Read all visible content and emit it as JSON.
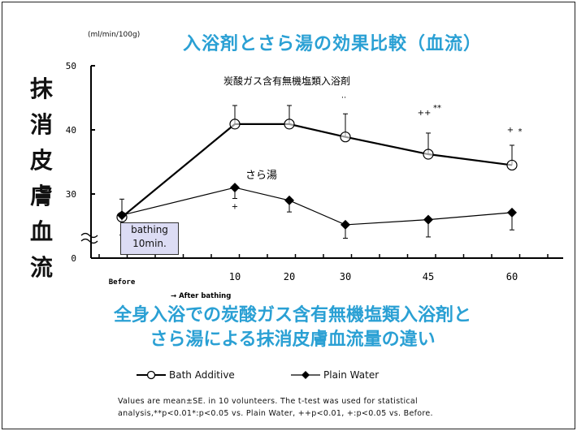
{
  "chart_data": {
    "type": "line",
    "title": "入浴剤とさら湯の効果比較（血流）",
    "ylabel": "抹消皮膚血流",
    "yunit": "(ml/min/100g)",
    "ylim": [
      20,
      50
    ],
    "yaxis_break": true,
    "yticks": [
      "0",
      "30",
      "40",
      "50"
    ],
    "x": [
      "Before",
      "10",
      "20",
      "30",
      "45",
      "60"
    ],
    "xlabel_sub": "→  After bathing",
    "series": [
      {
        "name": "Bath Additive",
        "annotation": "炭酸ガス含有無機塩類入浴剤",
        "marker": "open-circle",
        "values": [
          26.4,
          40.9,
          40.9,
          38.9,
          36.2,
          34.5
        ],
        "err_upper": [
          29.2,
          43.8,
          43.8,
          42.5,
          39.5,
          37.6
        ]
      },
      {
        "name": "Plain Water",
        "annotation": "さら湯",
        "marker": "filled-diamond",
        "values": [
          26.7,
          31.0,
          29.0,
          25.2,
          26.0,
          27.1
        ],
        "err_lower": [
          23.6,
          29.3,
          27.2,
          23.1,
          23.3,
          24.4
        ]
      }
    ],
    "significance_marks": [
      {
        "x": "10",
        "text": "+",
        "pos": "below-plain"
      },
      {
        "x": "30",
        "text": "..",
        "pos": "above-bath"
      },
      {
        "x": "45",
        "text": "++",
        "pos": "above-bath"
      },
      {
        "x": "45",
        "text": "**",
        "pos": "above-bath-right"
      },
      {
        "x": "60",
        "text": "+",
        "pos": "above-bath"
      },
      {
        "x": "60",
        "text": "*",
        "pos": "above-bath-right"
      }
    ],
    "legend_placement": "bottom"
  },
  "bathing_box": {
    "line1": "bathing",
    "line2": "10min."
  },
  "subtitle": {
    "line1": "全身入浴での炭酸ガス含有無機塩類入浴剤と",
    "line2": "さら湯による抹消皮膚血流量の違い"
  },
  "note": {
    "line1": "Values are mean±SE. in 10 volunteers.    The t-test was used for statistical",
    "line2": "analysis,**p<0.01*:p<0.05 vs. Plain Water, ++p<0.01, +:p<0.05 vs. Before."
  }
}
